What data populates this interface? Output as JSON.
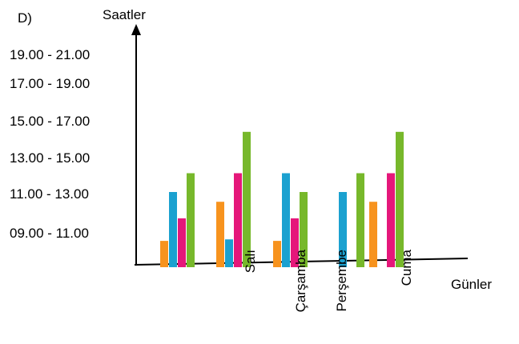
{
  "panel_label": "D)",
  "chart_data": {
    "type": "bar",
    "ylabel": "Saatler",
    "xlabel": "Günler",
    "y_tick_labels": [
      "09.00 - 11.00",
      "11.00 - 13.00",
      "13.00 - 15.00",
      "15.00 - 17.00",
      "17.00 - 19.00",
      "19.00 - 21.00"
    ],
    "categories": [
      "",
      "Salı",
      "Çarşamba",
      "Perşembe",
      "Cuma"
    ],
    "series": [
      {
        "color": "#F7931E",
        "values": [
          0.35,
          0.87,
          0.35,
          null,
          0.87
        ]
      },
      {
        "color": "#1BA1D0",
        "values": [
          1.0,
          0.37,
          1.25,
          1.0,
          null
        ]
      },
      {
        "color": "#E5177A",
        "values": [
          0.65,
          1.25,
          0.65,
          null,
          1.25
        ]
      },
      {
        "color": "#77B82B",
        "values": [
          1.25,
          1.8,
          1.0,
          1.25,
          1.8
        ]
      }
    ],
    "grid": false,
    "legend": "none"
  }
}
